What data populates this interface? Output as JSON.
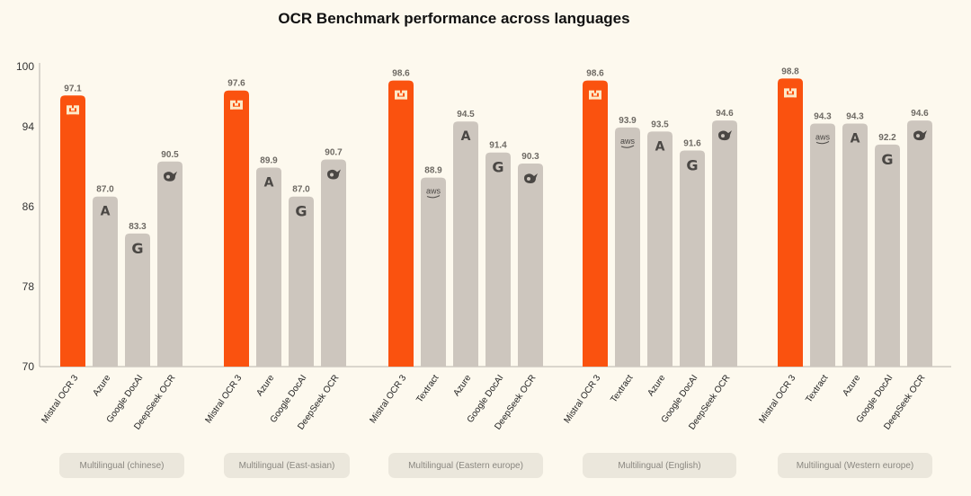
{
  "chart_data": {
    "type": "bar",
    "title": "OCR Benchmark performance across languages",
    "xlabel": "",
    "ylabel": "",
    "ylim": [
      70,
      100
    ],
    "yticks": [
      "100",
      "94",
      "86",
      "78",
      "70"
    ],
    "yticks_values": [
      100,
      94,
      86,
      78,
      70
    ],
    "grid": false,
    "legend": "none",
    "highlight_color": "#fa520f",
    "default_color": "#cdc6be",
    "groups": [
      {
        "label": "Multilingual (chinese)",
        "bars": [
          {
            "name": "Mistral OCR 3",
            "value": 97.1,
            "value_label": "97.1",
            "icon": "mistral-icon",
            "highlight": true
          },
          {
            "name": "Azure",
            "value": 87.0,
            "value_label": "87.0",
            "icon": "azure-icon"
          },
          {
            "name": "Google DocAI",
            "value": 83.3,
            "value_label": "83.3",
            "icon": "google-icon"
          },
          {
            "name": "DeepSeek OCR",
            "value": 90.5,
            "value_label": "90.5",
            "icon": "deepseek-icon"
          }
        ]
      },
      {
        "label": "Multilingual (East-asian)",
        "bars": [
          {
            "name": "Mistral OCR 3",
            "value": 97.6,
            "value_label": "97.6",
            "icon": "mistral-icon",
            "highlight": true
          },
          {
            "name": "Azure",
            "value": 89.9,
            "value_label": "89.9",
            "icon": "azure-icon"
          },
          {
            "name": "Google DocAI",
            "value": 87.0,
            "value_label": "87.0",
            "icon": "google-icon"
          },
          {
            "name": "DeepSeek OCR",
            "value": 90.7,
            "value_label": "90.7",
            "icon": "deepseek-icon"
          }
        ]
      },
      {
        "label": "Multilingual (Eastern europe)",
        "bars": [
          {
            "name": "Mistral OCR 3",
            "value": 98.6,
            "value_label": "98.6",
            "icon": "mistral-icon",
            "highlight": true
          },
          {
            "name": "Textract",
            "value": 88.9,
            "value_label": "88.9",
            "icon": "aws-icon"
          },
          {
            "name": "Azure",
            "value": 94.5,
            "value_label": "94.5",
            "icon": "azure-icon"
          },
          {
            "name": "Google DocAI",
            "value": 91.4,
            "value_label": "91.4",
            "icon": "google-icon"
          },
          {
            "name": "DeepSeek OCR",
            "value": 90.3,
            "value_label": "90.3",
            "icon": "deepseek-icon"
          }
        ]
      },
      {
        "label": "Multilingual (English)",
        "bars": [
          {
            "name": "Mistral OCR 3",
            "value": 98.6,
            "value_label": "98.6",
            "icon": "mistral-icon",
            "highlight": true
          },
          {
            "name": "Textract",
            "value": 93.9,
            "value_label": "93.9",
            "icon": "aws-icon"
          },
          {
            "name": "Azure",
            "value": 93.5,
            "value_label": "93.5",
            "icon": "azure-icon"
          },
          {
            "name": "Google DocAI",
            "value": 91.6,
            "value_label": "91.6",
            "icon": "google-icon"
          },
          {
            "name": "DeepSeek OCR",
            "value": 94.6,
            "value_label": "94.6",
            "icon": "deepseek-icon"
          }
        ]
      },
      {
        "label": "Multilingual (Western europe)",
        "bars": [
          {
            "name": "Mistral OCR 3",
            "value": 98.8,
            "value_label": "98.8",
            "icon": "mistral-icon",
            "highlight": true
          },
          {
            "name": "Textract",
            "value": 94.3,
            "value_label": "94.3",
            "icon": "aws-icon"
          },
          {
            "name": "Azure",
            "value": 94.3,
            "value_label": "94.3",
            "icon": "azure-icon"
          },
          {
            "name": "Google DocAI",
            "value": 92.2,
            "value_label": "92.2",
            "icon": "google-icon"
          },
          {
            "name": "DeepSeek OCR",
            "value": 94.6,
            "value_label": "94.6",
            "icon": "deepseek-icon"
          }
        ]
      }
    ]
  },
  "icons": {
    "aws_text": "aws",
    "azure_text": "A",
    "google_text": "G"
  }
}
